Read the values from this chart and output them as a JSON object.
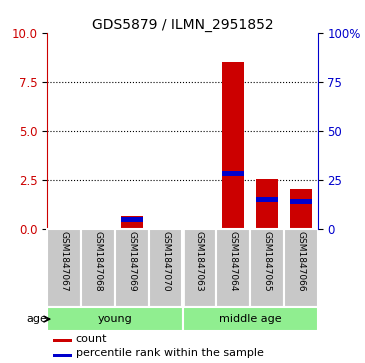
{
  "title": "GDS5879 / ILMN_2951852",
  "samples": [
    "GSM1847067",
    "GSM1847068",
    "GSM1847069",
    "GSM1847070",
    "GSM1847063",
    "GSM1847064",
    "GSM1847065",
    "GSM1847066"
  ],
  "count_values": [
    0.0,
    0.0,
    0.65,
    0.0,
    0.0,
    8.5,
    2.55,
    2.0
  ],
  "percentile_values": [
    0.0,
    0.0,
    0.45,
    0.0,
    0.0,
    2.8,
    1.5,
    1.4
  ],
  "groups": [
    {
      "name": "young",
      "span": [
        0,
        3
      ],
      "color": "#90EE90"
    },
    {
      "name": "middle age",
      "span": [
        4,
        7
      ],
      "color": "#90EE90"
    }
  ],
  "ylim_left": [
    0,
    10
  ],
  "ylim_right": [
    0,
    100
  ],
  "yticks_left": [
    0,
    2.5,
    5,
    7.5,
    10
  ],
  "yticks_right": [
    0,
    25,
    50,
    75,
    100
  ],
  "left_axis_color": "#cc0000",
  "right_axis_color": "#0000cc",
  "bar_color_count": "#cc0000",
  "bar_color_percentile": "#0000cc",
  "bar_width": 0.65,
  "pct_bar_height": 0.25,
  "age_label": "age",
  "legend_count": "count",
  "legend_percentile": "percentile rank within the sample",
  "sample_box_color": "#c8c8c8",
  "background_color": "#ffffff"
}
